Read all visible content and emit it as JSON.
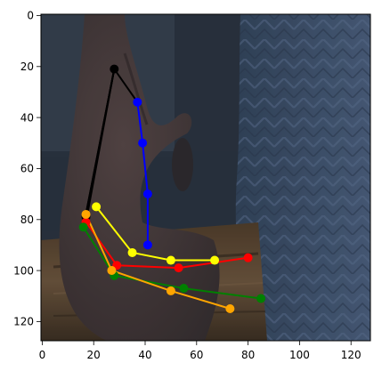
{
  "figure": {
    "background": "#ffffff",
    "photo_palette": {
      "dark_bg": "#26303b",
      "mid_bg": "#3b4652",
      "fabric_blue": "#3b4f67",
      "fabric_stripe": "#55698a",
      "hand_dark": "#3e3535",
      "hand_mid": "#4c4141",
      "wood_brown": "#5b4733",
      "wood_dark": "#3a2f24"
    }
  },
  "image_axes": {
    "x_ticks": [
      "0",
      "20",
      "40",
      "60",
      "80",
      "100",
      "120"
    ],
    "y_ticks": [
      "0",
      "20",
      "40",
      "60",
      "80",
      "100",
      "120"
    ],
    "xlim": [
      -0.5,
      127.5
    ],
    "ylim": [
      127.5,
      -0.5
    ],
    "grid": false
  },
  "pose": {
    "marker_color_root": "#000000",
    "chains": [
      {
        "id": "thumb",
        "color": "#000000",
        "points": [
          [
            17,
            79
          ],
          [
            28,
            21
          ]
        ]
      },
      {
        "id": "index",
        "color": "#0000ff",
        "points": [
          [
            37,
            34
          ],
          [
            39,
            50
          ],
          [
            41,
            70
          ],
          [
            41,
            90
          ]
        ]
      },
      {
        "id": "middle",
        "color": "#ffff00",
        "points": [
          [
            21,
            75
          ],
          [
            35,
            93
          ],
          [
            50,
            96
          ],
          [
            67,
            96
          ]
        ]
      },
      {
        "id": "ring",
        "color": "#ff0000",
        "points": [
          [
            17,
            81
          ],
          [
            29,
            98
          ],
          [
            53,
            99
          ],
          [
            80,
            95
          ]
        ]
      },
      {
        "id": "little",
        "color": "#008000",
        "points": [
          [
            16,
            83
          ],
          [
            28,
            102
          ],
          [
            55,
            107
          ],
          [
            85,
            111
          ]
        ]
      },
      {
        "id": "extra",
        "color": "#ffa500",
        "points": [
          [
            17,
            78
          ],
          [
            27,
            100
          ],
          [
            50,
            108
          ],
          [
            73,
            115
          ]
        ]
      }
    ],
    "black_links": [
      [
        [
          28,
          21
        ],
        [
          37,
          34
        ]
      ],
      [
        [
          28,
          21
        ],
        [
          17,
          78
        ]
      ],
      [
        [
          28,
          21
        ],
        [
          17,
          81
        ]
      ],
      [
        [
          28,
          21
        ],
        [
          16,
          83
        ]
      ]
    ]
  }
}
